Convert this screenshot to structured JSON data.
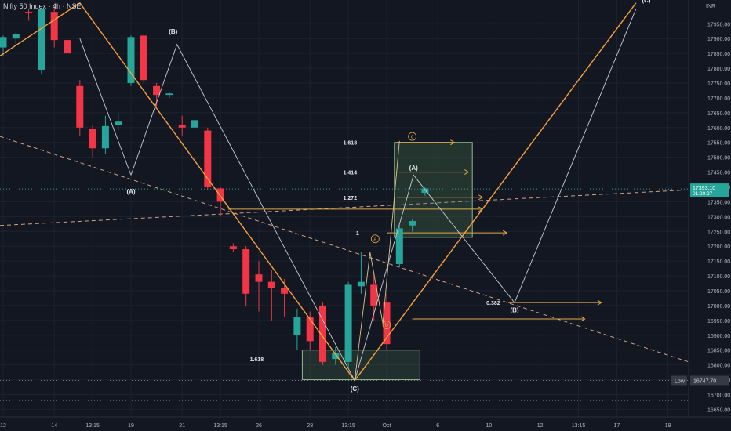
{
  "header": {
    "symbol": "Nifty 50 Index · 4h · NSE"
  },
  "colors": {
    "up": "#26a69a",
    "down": "#f23645",
    "orange": "#f7a03a",
    "wave": "#c9ccd4",
    "fib": "#e0a94a",
    "axis_text": "#b2b5be",
    "grid": "#1e222d",
    "bg": "#131722",
    "box": "#4a7a52",
    "label_bg": "#363a45"
  },
  "chart_data": {
    "type": "candlestick",
    "currency": "INR",
    "ylim": [
      16630,
      18030
    ],
    "y_ticks": [
      16650,
      16700,
      16750,
      16800,
      16850,
      16900,
      16950,
      17000,
      17050,
      17100,
      17150,
      17200,
      17250,
      17300,
      17350,
      17400,
      17450,
      17500,
      17550,
      17600,
      17650,
      17700,
      17750,
      17800,
      17850,
      17900,
      17950
    ],
    "x_ticks": [
      {
        "label": "12",
        "i": 0
      },
      {
        "label": "14",
        "i": 4
      },
      {
        "label": "13:15",
        "i": 7
      },
      {
        "label": "19",
        "i": 10
      },
      {
        "label": "21",
        "i": 14
      },
      {
        "label": "13:15",
        "i": 17
      },
      {
        "label": "26",
        "i": 20
      },
      {
        "label": "28",
        "i": 24
      },
      {
        "label": "13:15",
        "i": 27
      },
      {
        "label": "Oct",
        "i": 30
      },
      {
        "label": "6",
        "i": 34
      },
      {
        "label": "10",
        "i": 38
      },
      {
        "label": "12",
        "i": 42
      },
      {
        "label": "13:15",
        "i": 45
      },
      {
        "label": "17",
        "i": 48
      },
      {
        "label": "19",
        "i": 52
      }
    ],
    "candles": [
      {
        "o": 17870,
        "h": 17910,
        "l": 17840,
        "c": 17905
      },
      {
        "o": 17900,
        "h": 17920,
        "l": 17880,
        "c": 17915
      },
      {
        "o": 17990,
        "h": 18000,
        "l": 17960,
        "c": 17985
      },
      {
        "o": 17795,
        "h": 18000,
        "l": 17780,
        "c": 18000
      },
      {
        "o": 17990,
        "h": 18010,
        "l": 17870,
        "c": 17895
      },
      {
        "o": 17895,
        "h": 17900,
        "l": 17820,
        "c": 17850
      },
      {
        "o": 17740,
        "h": 17760,
        "l": 17570,
        "c": 17600
      },
      {
        "o": 17595,
        "h": 17610,
        "l": 17500,
        "c": 17530
      },
      {
        "o": 17530,
        "h": 17640,
        "l": 17510,
        "c": 17605
      },
      {
        "o": 17610,
        "h": 17650,
        "l": 17590,
        "c": 17620
      },
      {
        "o": 17750,
        "h": 17910,
        "l": 17740,
        "c": 17905
      },
      {
        "o": 17910,
        "h": 17915,
        "l": 17750,
        "c": 17760
      },
      {
        "o": 17740,
        "h": 17750,
        "l": 17670,
        "c": 17710
      },
      {
        "o": 17710,
        "h": 17720,
        "l": 17700,
        "c": 17715
      },
      {
        "o": 17610,
        "h": 17640,
        "l": 17570,
        "c": 17600
      },
      {
        "o": 17600,
        "h": 17650,
        "l": 17590,
        "c": 17625
      },
      {
        "o": 17590,
        "h": 17600,
        "l": 17390,
        "c": 17400
      },
      {
        "o": 17395,
        "h": 17400,
        "l": 17300,
        "c": 17350
      },
      {
        "o": 17200,
        "h": 17210,
        "l": 17180,
        "c": 17190
      },
      {
        "o": 17190,
        "h": 17200,
        "l": 17000,
        "c": 17040
      },
      {
        "o": 17105,
        "h": 17150,
        "l": 16980,
        "c": 17080
      },
      {
        "o": 17080,
        "h": 17120,
        "l": 16950,
        "c": 17060
      },
      {
        "o": 17060,
        "h": 17090,
        "l": 16960,
        "c": 17040
      },
      {
        "o": 16900,
        "h": 16990,
        "l": 16850,
        "c": 16960
      },
      {
        "o": 16960,
        "h": 16980,
        "l": 16850,
        "c": 16880
      },
      {
        "o": 17000,
        "h": 17010,
        "l": 16800,
        "c": 16810
      },
      {
        "o": 16820,
        "h": 16860,
        "l": 16800,
        "c": 16840
      },
      {
        "o": 16810,
        "h": 17080,
        "l": 16790,
        "c": 17070
      },
      {
        "o": 17065,
        "h": 17180,
        "l": 17040,
        "c": 17080
      },
      {
        "o": 17070,
        "h": 17110,
        "l": 16950,
        "c": 17000
      },
      {
        "o": 17010,
        "h": 17040,
        "l": 16850,
        "c": 16870
      },
      {
        "o": 17140,
        "h": 17270,
        "l": 17130,
        "c": 17260
      },
      {
        "o": 17270,
        "h": 17290,
        "l": 17250,
        "c": 17285
      },
      {
        "o": 17380,
        "h": 17400,
        "l": 17370,
        "c": 17395
      }
    ],
    "fib_levels": [
      "1.618",
      "1.414",
      "1.272",
      "1",
      "0.382",
      "1.618"
    ],
    "wave_labels": [
      "(A)",
      "(B)",
      "(C)",
      "(A)",
      "(B)",
      "(C)",
      "a",
      "b",
      "c"
    ],
    "price_label": {
      "value": "17393.10",
      "sub": "01:20:27"
    },
    "low_label": {
      "text": "Low",
      "value": "16747.70"
    }
  }
}
